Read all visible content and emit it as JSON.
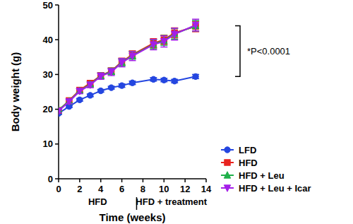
{
  "chart_data": {
    "type": "line",
    "y_label": "Body weight (g)",
    "x_label": "Time (weeks)",
    "x": [
      0,
      1,
      2,
      3,
      4,
      5,
      6,
      7,
      9,
      10,
      11,
      13
    ],
    "series": [
      {
        "name": "LFD",
        "color": "#2446e0",
        "marker": "circle",
        "values": [
          18.8,
          20.8,
          22.7,
          24.0,
          25.3,
          26.2,
          26.8,
          27.6,
          28.6,
          28.4,
          28.1,
          29.4
        ],
        "errors": [
          0.3,
          0.3,
          0.4,
          0.4,
          0.4,
          0.4,
          0.5,
          0.5,
          0.5,
          0.5,
          0.5,
          0.6
        ]
      },
      {
        "name": "HFD",
        "color": "#e8231f",
        "marker": "square",
        "values": [
          19.7,
          22.5,
          25.5,
          27.5,
          29.7,
          31.0,
          33.7,
          35.7,
          39.0,
          40.0,
          42.0,
          43.8
        ],
        "errors": [
          0.4,
          0.5,
          0.6,
          0.7,
          0.8,
          0.9,
          1.0,
          1.1,
          1.3,
          1.3,
          1.4,
          1.5
        ]
      },
      {
        "name": "HFD + Leu",
        "color": "#1fb04a",
        "marker": "triangle",
        "values": [
          19.8,
          22.3,
          25.3,
          27.2,
          29.6,
          30.9,
          33.5,
          35.5,
          38.7,
          39.8,
          41.7,
          44.0
        ],
        "errors": [
          0.4,
          0.5,
          0.6,
          0.7,
          0.8,
          0.9,
          1.0,
          1.1,
          1.3,
          1.4,
          1.5,
          1.5
        ]
      },
      {
        "name": "HFD + Leu + Icar",
        "color": "#a41ee8",
        "marker": "triangle-down",
        "values": [
          19.5,
          22.2,
          25.2,
          27.0,
          29.5,
          30.7,
          33.4,
          35.3,
          38.6,
          39.5,
          41.6,
          44.2
        ],
        "errors": [
          0.5,
          0.6,
          0.7,
          0.8,
          0.9,
          1.0,
          1.2,
          1.3,
          1.5,
          1.6,
          1.7,
          1.7
        ]
      }
    ],
    "xlim": [
      0,
      14
    ],
    "xticks": [
      0,
      2,
      4,
      6,
      8,
      10,
      12,
      14
    ],
    "ylim": [
      0,
      50
    ],
    "yticks": [
      0,
      10,
      20,
      30,
      40,
      50
    ],
    "grid": false,
    "legend": "right",
    "phases": [
      {
        "label": "HFD",
        "x": [
          0,
          7.4
        ]
      },
      {
        "label": "HFD + treatment",
        "x": [
          7.4,
          14
        ]
      }
    ],
    "annotation": {
      "text": "*P<0.0001",
      "y": [
        29.4,
        44.0
      ]
    }
  }
}
